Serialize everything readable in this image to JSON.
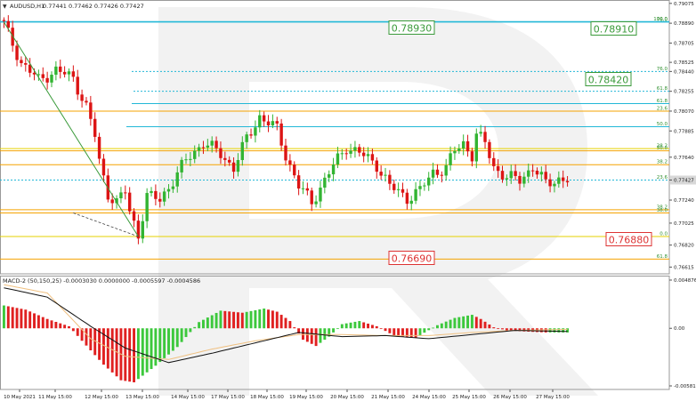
{
  "main_header": {
    "arrow_glyph": "▼",
    "symbol": "AUDUSD,H1",
    "ohlc": "0.77441 0.77462 0.77426 0.77427"
  },
  "macd_header": "MACD-2 (50,150,25) -0.0003030 0.0000000 -0.0005597 -0.0004586",
  "colors": {
    "bull_candle": "#32b432",
    "bear_candle": "#dc1414",
    "fib_cyan": "#23b8d7",
    "fib_orange": "#f5a300",
    "fib_yellow": "#e6d200",
    "fib_green_text": "#2f8f2f",
    "target_green": "#3a9a3a",
    "target_red": "#dd3333",
    "trend_line": "#3a9a3a",
    "macd_pos": "#3cc83c",
    "macd_neg": "#e02020",
    "macd_line": "#111111",
    "macd_signal": "#f0c080",
    "current_price_bg": "#d8d8d8"
  },
  "chart_data": [
    {
      "type": "candlestick",
      "symbol": "AUDUSD",
      "timeframe": "H1",
      "ylim": [
        0.7656,
        0.7909
      ],
      "y_ticks": [
        "0.79075",
        "0.78890",
        "0.78705",
        "0.78525",
        "0.78440",
        "0.78255",
        "0.78070",
        "0.77885",
        "0.77640",
        "0.77427",
        "0.77240",
        "0.77025",
        "0.76820",
        "0.76615"
      ],
      "x_ticks": [
        "10 May 2021",
        "11 May 15:00",
        "12 May 15:00",
        "13 May 15:00",
        "14 May 15:00",
        "17 May 15:00",
        "18 May 15:00",
        "19 May 15:00",
        "20 May 15:00",
        "21 May 15:00",
        "24 May 15:00",
        "25 May 15:00",
        "26 May 15:00",
        "27 May 15:00"
      ],
      "current_price": 0.77427,
      "close_path": [
        [
          0,
          0.7888
        ],
        [
          4,
          0.7852
        ],
        [
          8,
          0.7836
        ],
        [
          12,
          0.7845
        ],
        [
          16,
          0.7838
        ],
        [
          19,
          0.7811
        ],
        [
          21,
          0.7784
        ],
        [
          22,
          0.776
        ],
        [
          24,
          0.773
        ],
        [
          26,
          0.7722
        ],
        [
          28,
          0.7732
        ],
        [
          29,
          0.7713
        ],
        [
          31,
          0.7692
        ],
        [
          33,
          0.7728
        ],
        [
          36,
          0.7724
        ],
        [
          42,
          0.7761
        ],
        [
          46,
          0.7778
        ],
        [
          50,
          0.7767
        ],
        [
          53,
          0.7754
        ],
        [
          56,
          0.7781
        ],
        [
          59,
          0.7802
        ],
        [
          61,
          0.7796
        ],
        [
          63,
          0.779
        ],
        [
          65,
          0.7766
        ],
        [
          68,
          0.7737
        ],
        [
          71,
          0.7722
        ],
        [
          73,
          0.7736
        ],
        [
          76,
          0.7756
        ],
        [
          79,
          0.7774
        ],
        [
          82,
          0.7768
        ],
        [
          86,
          0.7757
        ],
        [
          89,
          0.7737
        ],
        [
          93,
          0.7726
        ],
        [
          96,
          0.7733
        ],
        [
          99,
          0.775
        ],
        [
          102,
          0.7754
        ],
        [
          104,
          0.777
        ],
        [
          106,
          0.7777
        ],
        [
          108,
          0.7766
        ],
        [
          109,
          0.7785
        ],
        [
          111,
          0.7777
        ],
        [
          113,
          0.7755
        ],
        [
          116,
          0.7745
        ],
        [
          119,
          0.7743
        ],
        [
          122,
          0.7755
        ],
        [
          125,
          0.7739
        ],
        [
          128,
          0.7744
        ],
        [
          130,
          0.7743
        ]
      ],
      "fibonacci_levels": [
        {
          "label": "76.0",
          "price": 0.789,
          "color": "fib_cyan"
        },
        {
          "label": "100.0",
          "price": 0.78905,
          "color": "fib_cyan"
        },
        {
          "label": "76.0",
          "price": 0.7844,
          "color": "fib_cyan"
        },
        {
          "label": "61.8",
          "price": 0.78255,
          "color": "fib_cyan"
        },
        {
          "label": "61.8",
          "price": 0.7814,
          "color": "fib_cyan"
        },
        {
          "label": "23.6",
          "price": 0.7807,
          "color": "fib_orange"
        },
        {
          "label": "50.0",
          "price": 0.77925,
          "color": "fib_cyan"
        },
        {
          "label": "38.2",
          "price": 0.7772,
          "color": "fib_yellow"
        },
        {
          "label": "50.0",
          "price": 0.777,
          "color": "fib_orange"
        },
        {
          "label": "38.2",
          "price": 0.7757,
          "color": "fib_orange"
        },
        {
          "label": "23.6",
          "price": 0.77427,
          "color": "fib_cyan"
        },
        {
          "label": "38.2",
          "price": 0.7715,
          "color": "fib_orange"
        },
        {
          "label": "38.0",
          "price": 0.7712,
          "color": "fib_orange"
        },
        {
          "label": "0.0",
          "price": 0.769,
          "color": "fib_yellow"
        },
        {
          "label": "61.8",
          "price": 0.7669,
          "color": "fib_orange"
        }
      ],
      "targets": [
        {
          "label": "0.78930",
          "kind": "green"
        },
        {
          "label": "0.78910",
          "kind": "green"
        },
        {
          "label": "0.78420",
          "kind": "green"
        },
        {
          "label": "0.76880",
          "kind": "red"
        },
        {
          "label": "0.76690",
          "kind": "red"
        }
      ]
    },
    {
      "type": "histogram",
      "name": "MACD-2 (50,150,25)",
      "ylim": [
        -0.0058,
        0.0049
      ],
      "y_ticks": [
        "0.0048761",
        "0.00",
        "-0.0058181"
      ],
      "hist_path": [
        [
          0,
          0.0022
        ],
        [
          5,
          0.0018
        ],
        [
          10,
          0.0009
        ],
        [
          15,
          0.0002
        ],
        [
          18,
          -0.0012
        ],
        [
          23,
          -0.0035
        ],
        [
          27,
          -0.005
        ],
        [
          30,
          -0.0052
        ],
        [
          35,
          -0.0036
        ],
        [
          40,
          -0.0018
        ],
        [
          45,
          0.0006
        ],
        [
          50,
          0.0017
        ],
        [
          55,
          0.0015
        ],
        [
          60,
          0.0019
        ],
        [
          63,
          0.0016
        ],
        [
          66,
          0.0007
        ],
        [
          69,
          -0.0011
        ],
        [
          72,
          -0.0017
        ],
        [
          75,
          -0.0008
        ],
        [
          78,
          0.0004
        ],
        [
          82,
          0.0007
        ],
        [
          86,
          0.0002
        ],
        [
          90,
          -0.0007
        ],
        [
          95,
          -0.0009
        ],
        [
          100,
          0.0003
        ],
        [
          104,
          0.001
        ],
        [
          108,
          0.0013
        ],
        [
          110,
          0.0009
        ],
        [
          113,
          0.0001
        ],
        [
          116,
          -0.0002
        ],
        [
          120,
          -0.0003
        ],
        [
          125,
          -0.0004
        ],
        [
          130,
          -0.0004
        ]
      ],
      "macd_line": [
        [
          0,
          0.0039
        ],
        [
          10,
          0.003
        ],
        [
          20,
          0.0002
        ],
        [
          28,
          -0.0019
        ],
        [
          38,
          -0.0033
        ],
        [
          48,
          -0.0024
        ],
        [
          58,
          -0.0014
        ],
        [
          68,
          -0.0004
        ],
        [
          78,
          -0.0008
        ],
        [
          88,
          -0.0007
        ],
        [
          98,
          -0.001
        ],
        [
          108,
          -0.0006
        ],
        [
          118,
          -0.0002
        ],
        [
          130,
          -0.0003
        ]
      ],
      "signal_line": [
        [
          0,
          0.0042
        ],
        [
          10,
          0.0034
        ],
        [
          20,
          -0.001
        ],
        [
          28,
          -0.0027
        ],
        [
          38,
          -0.003
        ],
        [
          48,
          -0.002
        ],
        [
          58,
          -0.0012
        ],
        [
          68,
          -0.0006
        ],
        [
          78,
          -0.0006
        ],
        [
          88,
          -0.0007
        ],
        [
          98,
          -0.0007
        ],
        [
          108,
          -0.0004
        ],
        [
          118,
          -0.0002
        ],
        [
          130,
          -0.0001
        ]
      ]
    }
  ]
}
